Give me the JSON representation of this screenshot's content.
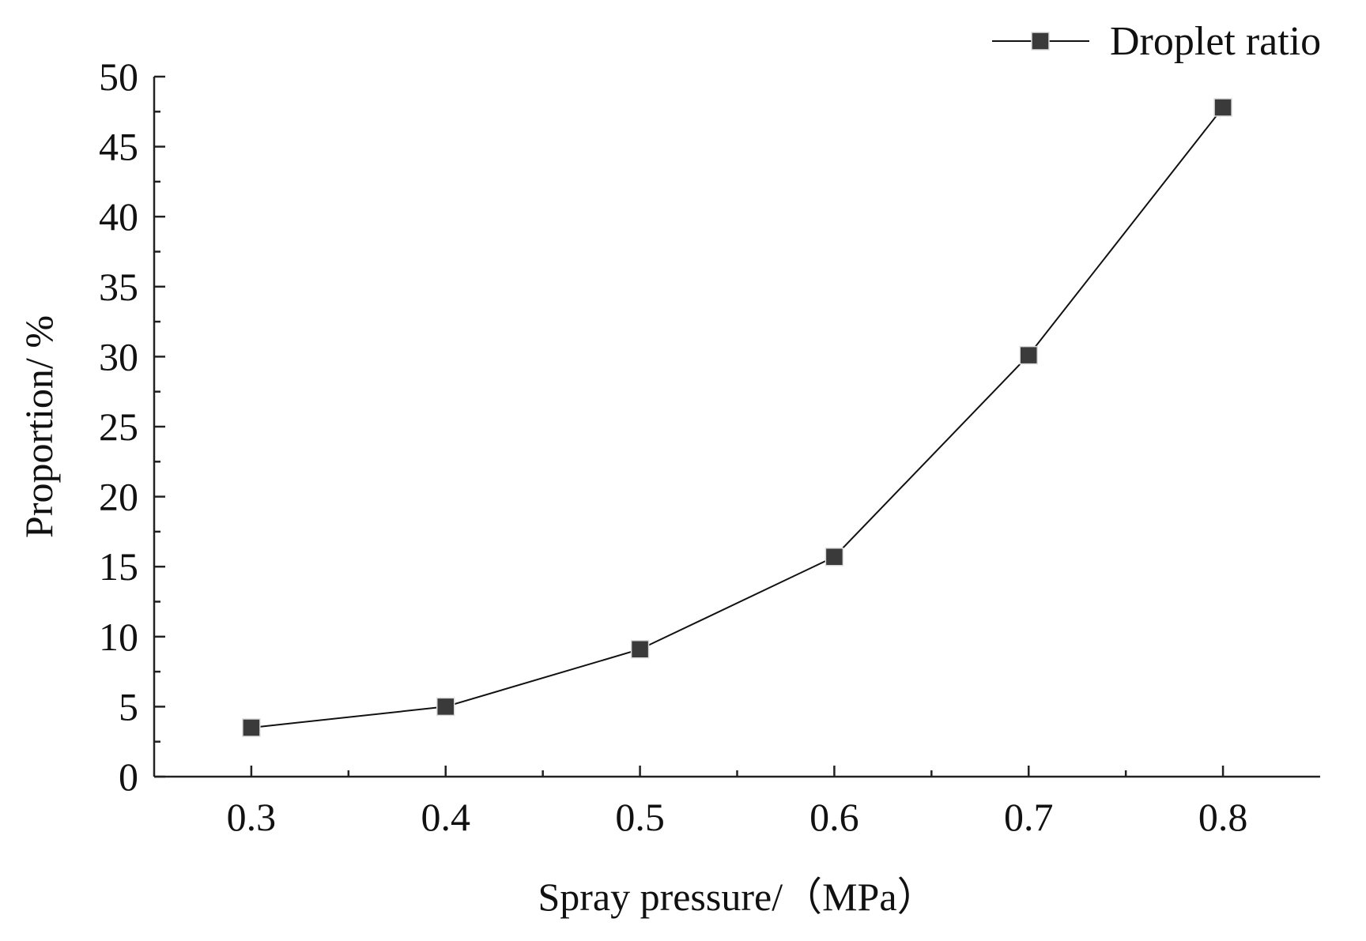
{
  "chart_data": {
    "type": "line",
    "title": "",
    "xlabel": "Spray pressure/（MPa）",
    "ylabel": "Proportion/ %",
    "xlim": [
      0.25,
      0.85
    ],
    "ylim": [
      0,
      50
    ],
    "grid": false,
    "legend": "top-right",
    "x_ticks": [
      0.3,
      0.4,
      0.5,
      0.6,
      0.7,
      0.8
    ],
    "x_tick_labels": [
      "0.3",
      "0.4",
      "0.5",
      "0.6",
      "0.7",
      "0.8"
    ],
    "y_ticks": [
      0,
      5,
      10,
      15,
      20,
      25,
      30,
      35,
      40,
      45,
      50
    ],
    "y_tick_labels": [
      "0",
      "5",
      "10",
      "15",
      "20",
      "25",
      "30",
      "35",
      "40",
      "45",
      "50"
    ],
    "x": [
      0.3,
      0.4,
      0.5,
      0.6,
      0.7,
      0.8
    ],
    "series": [
      {
        "name": "Droplet ratio",
        "values": [
          3.5,
          5.0,
          9.1,
          15.7,
          30.1,
          47.8
        ],
        "color": "#3a3a3a",
        "marker": "square"
      }
    ]
  }
}
